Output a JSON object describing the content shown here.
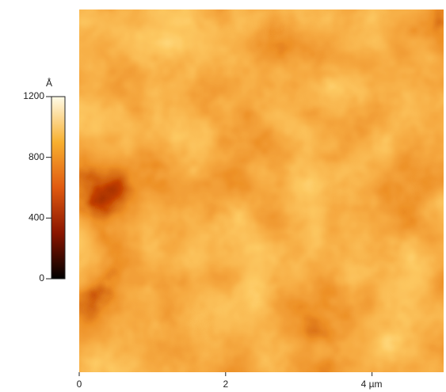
{
  "chart_data": {
    "type": "heatmap",
    "colorbar": {
      "unit": "Å",
      "lim": [
        0,
        1200
      ],
      "ticks": [
        0,
        400,
        800,
        1200
      ]
    },
    "xlim": [
      0,
      5
    ],
    "xticks": [
      0,
      2,
      {
        "value": 4,
        "label": "4 µm"
      }
    ]
  }
}
